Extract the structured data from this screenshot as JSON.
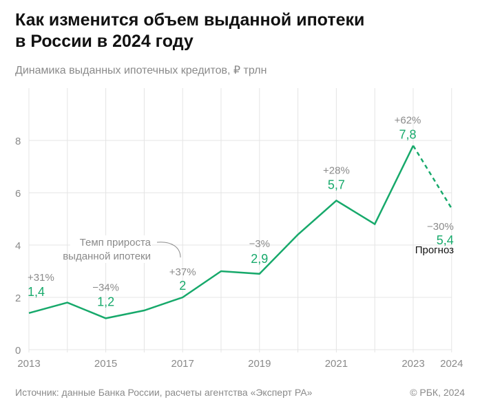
{
  "header": {
    "title_line1": "Как изменится объем выданной ипотеки",
    "title_line2": "в России в 2024 году",
    "subtitle": "Динамика выданных ипотечных кредитов, ₽ трлн"
  },
  "footer": {
    "source": "Источник: данные Банка России, расчеты агентства «Эксперт РА»",
    "copyright": "© РБК, 2024"
  },
  "chart_data": {
    "type": "line",
    "x": [
      2013,
      2014,
      2015,
      2016,
      2017,
      2018,
      2019,
      2020,
      2021,
      2022,
      2023,
      2024
    ],
    "values": [
      1.4,
      1.8,
      1.2,
      1.5,
      2.0,
      3.0,
      2.9,
      4.4,
      5.7,
      4.8,
      7.8,
      5.4
    ],
    "forecast_from": 2023,
    "xticks": [
      "2013",
      "2015",
      "2017",
      "2019",
      "2021",
      "2023",
      "2024"
    ],
    "yticks": [
      "0",
      "2",
      "4",
      "6",
      "8"
    ],
    "ylim": [
      0,
      10
    ],
    "grid": true,
    "color": "#17a96b",
    "labels": [
      {
        "x": 2013,
        "value": "1,4",
        "growth": "+31%"
      },
      {
        "x": 2015,
        "value": "1,2",
        "growth": "−34%"
      },
      {
        "x": 2017,
        "value": "2",
        "growth": "+37%"
      },
      {
        "x": 2019,
        "value": "2,9",
        "growth": "−3%"
      },
      {
        "x": 2021,
        "value": "5,7",
        "growth": "+28%"
      },
      {
        "x": 2023,
        "value": "7,8",
        "growth": "+62%"
      },
      {
        "x": 2024,
        "value": "5,4",
        "growth": "−30%"
      }
    ],
    "annotation_line1": "Темп прироста",
    "annotation_line2": "выданной ипотеки",
    "forecast_label": "Прогноз"
  }
}
